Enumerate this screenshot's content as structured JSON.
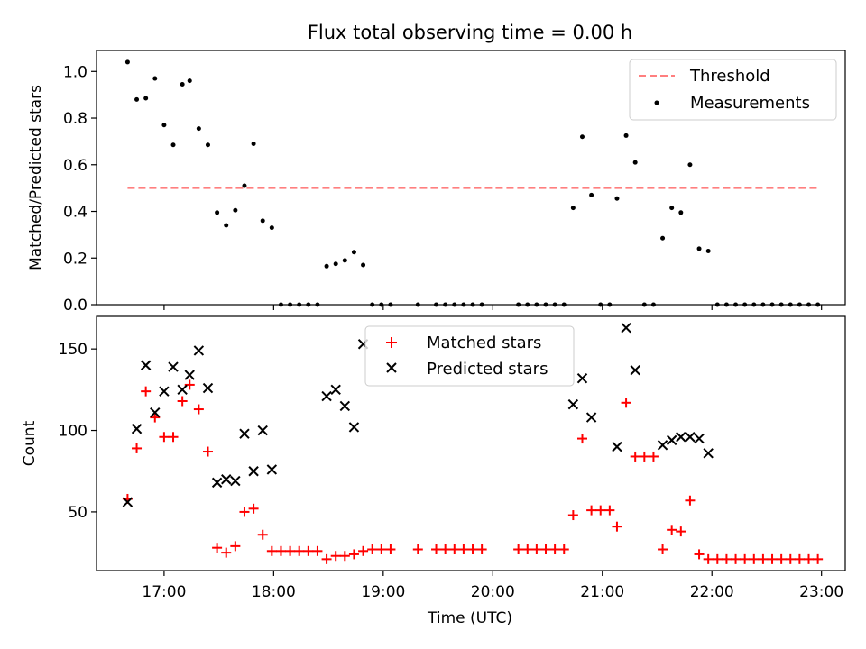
{
  "figure": {
    "title": "Flux total observing time = 0.00 h",
    "xlabel": "Time (UTC)"
  },
  "colors": {
    "threshold": "#ff7f7f",
    "measurements": "#000000",
    "matched": "#ff0000",
    "predicted": "#000000"
  },
  "chart_data": [
    {
      "type": "scatter",
      "ylabel": "Matched/Predicted stars",
      "xlim": [
        "16:23",
        "23:13"
      ],
      "ylim": [
        0,
        1.09
      ],
      "x_ticks": [
        "17:00",
        "18:00",
        "19:00",
        "20:00",
        "21:00",
        "22:00",
        "23:00"
      ],
      "y_ticks": [
        "0.0",
        "0.2",
        "0.4",
        "0.6",
        "0.8",
        "1.0"
      ],
      "legend_position": "top-right",
      "threshold": {
        "name": "Threshold",
        "style": "dashed",
        "y": 0.5,
        "x_start": "16:40",
        "x_end": "22:59"
      },
      "series": [
        {
          "name": "Measurements",
          "marker": "dot",
          "points": [
            [
              "16:40",
              1.04
            ],
            [
              "16:45",
              0.88
            ],
            [
              "16:50",
              0.885
            ],
            [
              "16:55",
              0.97
            ],
            [
              "17:00",
              0.77
            ],
            [
              "17:05",
              0.685
            ],
            [
              "17:10",
              0.945
            ],
            [
              "17:14",
              0.96
            ],
            [
              "17:19",
              0.755
            ],
            [
              "17:24",
              0.685
            ],
            [
              "17:29",
              0.395
            ],
            [
              "17:34",
              0.34
            ],
            [
              "17:39",
              0.405
            ],
            [
              "17:44",
              0.51
            ],
            [
              "17:49",
              0.69
            ],
            [
              "17:54",
              0.36
            ],
            [
              "17:59",
              0.33
            ],
            [
              "18:04",
              0.0
            ],
            [
              "18:09",
              0.0
            ],
            [
              "18:14",
              0.0
            ],
            [
              "18:19",
              0.0
            ],
            [
              "18:24",
              0.0
            ],
            [
              "18:29",
              0.165
            ],
            [
              "18:34",
              0.175
            ],
            [
              "18:39",
              0.19
            ],
            [
              "18:44",
              0.225
            ],
            [
              "18:49",
              0.17
            ],
            [
              "18:54",
              0.0
            ],
            [
              "18:59",
              0.0
            ],
            [
              "19:04",
              0.0
            ],
            [
              "19:19",
              0.0
            ],
            [
              "19:29",
              0.0
            ],
            [
              "19:34",
              0.0
            ],
            [
              "19:39",
              0.0
            ],
            [
              "19:44",
              0.0
            ],
            [
              "19:49",
              0.0
            ],
            [
              "19:54",
              0.0
            ],
            [
              "20:14",
              0.0
            ],
            [
              "20:19",
              0.0
            ],
            [
              "20:24",
              0.0
            ],
            [
              "20:29",
              0.0
            ],
            [
              "20:34",
              0.0
            ],
            [
              "20:39",
              0.0
            ],
            [
              "20:44",
              0.415
            ],
            [
              "20:49",
              0.72
            ],
            [
              "20:54",
              0.47
            ],
            [
              "20:59",
              0.0
            ],
            [
              "21:04",
              0.0
            ],
            [
              "21:08",
              0.455
            ],
            [
              "21:13",
              0.725
            ],
            [
              "21:18",
              0.61
            ],
            [
              "21:23",
              0.0
            ],
            [
              "21:28",
              0.0
            ],
            [
              "21:33",
              0.285
            ],
            [
              "21:38",
              0.415
            ],
            [
              "21:43",
              0.395
            ],
            [
              "21:48",
              0.6
            ],
            [
              "21:53",
              0.24
            ],
            [
              "21:58",
              0.23
            ],
            [
              "22:03",
              0.0
            ],
            [
              "22:08",
              0.0
            ],
            [
              "22:13",
              0.0
            ],
            [
              "22:18",
              0.0
            ],
            [
              "22:23",
              0.0
            ],
            [
              "22:28",
              0.0
            ],
            [
              "22:33",
              0.0
            ],
            [
              "22:38",
              0.0
            ],
            [
              "22:43",
              0.0
            ],
            [
              "22:48",
              0.0
            ],
            [
              "22:53",
              0.0
            ],
            [
              "22:58",
              0.0
            ]
          ]
        }
      ]
    },
    {
      "type": "scatter",
      "ylabel": "Count",
      "xlim": [
        "16:23",
        "23:13"
      ],
      "ylim": [
        14,
        170
      ],
      "x_ticks": [
        "17:00",
        "18:00",
        "19:00",
        "20:00",
        "21:00",
        "22:00",
        "23:00"
      ],
      "y_ticks": [
        "50",
        "100",
        "150"
      ],
      "legend_position": "top-center",
      "series": [
        {
          "name": "Matched stars",
          "marker": "plus",
          "points": [
            [
              "16:40",
              58
            ],
            [
              "16:45",
              89
            ],
            [
              "16:50",
              124
            ],
            [
              "16:55",
              108
            ],
            [
              "17:00",
              96
            ],
            [
              "17:05",
              96
            ],
            [
              "17:10",
              118
            ],
            [
              "17:14",
              128
            ],
            [
              "17:19",
              113
            ],
            [
              "17:24",
              87
            ],
            [
              "17:29",
              28
            ],
            [
              "17:34",
              25
            ],
            [
              "17:39",
              29
            ],
            [
              "17:44",
              50
            ],
            [
              "17:49",
              52
            ],
            [
              "17:54",
              36
            ],
            [
              "17:59",
              26
            ],
            [
              "18:04",
              26
            ],
            [
              "18:09",
              26
            ],
            [
              "18:14",
              26
            ],
            [
              "18:19",
              26
            ],
            [
              "18:24",
              26
            ],
            [
              "18:29",
              21
            ],
            [
              "18:34",
              23
            ],
            [
              "18:39",
              23
            ],
            [
              "18:44",
              24
            ],
            [
              "18:49",
              26
            ],
            [
              "18:54",
              27
            ],
            [
              "18:59",
              27
            ],
            [
              "19:04",
              27
            ],
            [
              "19:19",
              27
            ],
            [
              "19:29",
              27
            ],
            [
              "19:34",
              27
            ],
            [
              "19:39",
              27
            ],
            [
              "19:44",
              27
            ],
            [
              "19:49",
              27
            ],
            [
              "19:54",
              27
            ],
            [
              "20:14",
              27
            ],
            [
              "20:19",
              27
            ],
            [
              "20:24",
              27
            ],
            [
              "20:29",
              27
            ],
            [
              "20:34",
              27
            ],
            [
              "20:39",
              27
            ],
            [
              "20:44",
              48
            ],
            [
              "20:49",
              95
            ],
            [
              "20:54",
              51
            ],
            [
              "20:59",
              51
            ],
            [
              "21:04",
              51
            ],
            [
              "21:08",
              41
            ],
            [
              "21:13",
              117
            ],
            [
              "21:18",
              84
            ],
            [
              "21:23",
              84
            ],
            [
              "21:28",
              84
            ],
            [
              "21:33",
              27
            ],
            [
              "21:38",
              39
            ],
            [
              "21:43",
              38
            ],
            [
              "21:48",
              57
            ],
            [
              "21:53",
              24
            ],
            [
              "21:58",
              21
            ],
            [
              "22:03",
              21
            ],
            [
              "22:08",
              21
            ],
            [
              "22:13",
              21
            ],
            [
              "22:18",
              21
            ],
            [
              "22:23",
              21
            ],
            [
              "22:28",
              21
            ],
            [
              "22:33",
              21
            ],
            [
              "22:38",
              21
            ],
            [
              "22:43",
              21
            ],
            [
              "22:48",
              21
            ],
            [
              "22:53",
              21
            ],
            [
              "22:58",
              21
            ]
          ]
        },
        {
          "name": "Predicted stars",
          "marker": "x",
          "points": [
            [
              "16:40",
              56
            ],
            [
              "16:45",
              101
            ],
            [
              "16:50",
              140
            ],
            [
              "16:55",
              111
            ],
            [
              "17:00",
              124
            ],
            [
              "17:05",
              139
            ],
            [
              "17:10",
              125
            ],
            [
              "17:14",
              134
            ],
            [
              "17:19",
              149
            ],
            [
              "17:24",
              126
            ],
            [
              "17:29",
              68
            ],
            [
              "17:34",
              70
            ],
            [
              "17:39",
              69
            ],
            [
              "17:44",
              98
            ],
            [
              "17:49",
              75
            ],
            [
              "17:54",
              100
            ],
            [
              "17:59",
              76
            ],
            [
              "18:29",
              121
            ],
            [
              "18:34",
              125
            ],
            [
              "18:39",
              115
            ],
            [
              "18:44",
              102
            ],
            [
              "18:49",
              153
            ],
            [
              "20:44",
              116
            ],
            [
              "20:49",
              132
            ],
            [
              "20:54",
              108
            ],
            [
              "21:08",
              90
            ],
            [
              "21:13",
              163
            ],
            [
              "21:18",
              137
            ],
            [
              "21:33",
              91
            ],
            [
              "21:38",
              94
            ],
            [
              "21:43",
              96
            ],
            [
              "21:48",
              96
            ],
            [
              "21:53",
              95
            ],
            [
              "21:58",
              86
            ]
          ]
        }
      ]
    }
  ]
}
